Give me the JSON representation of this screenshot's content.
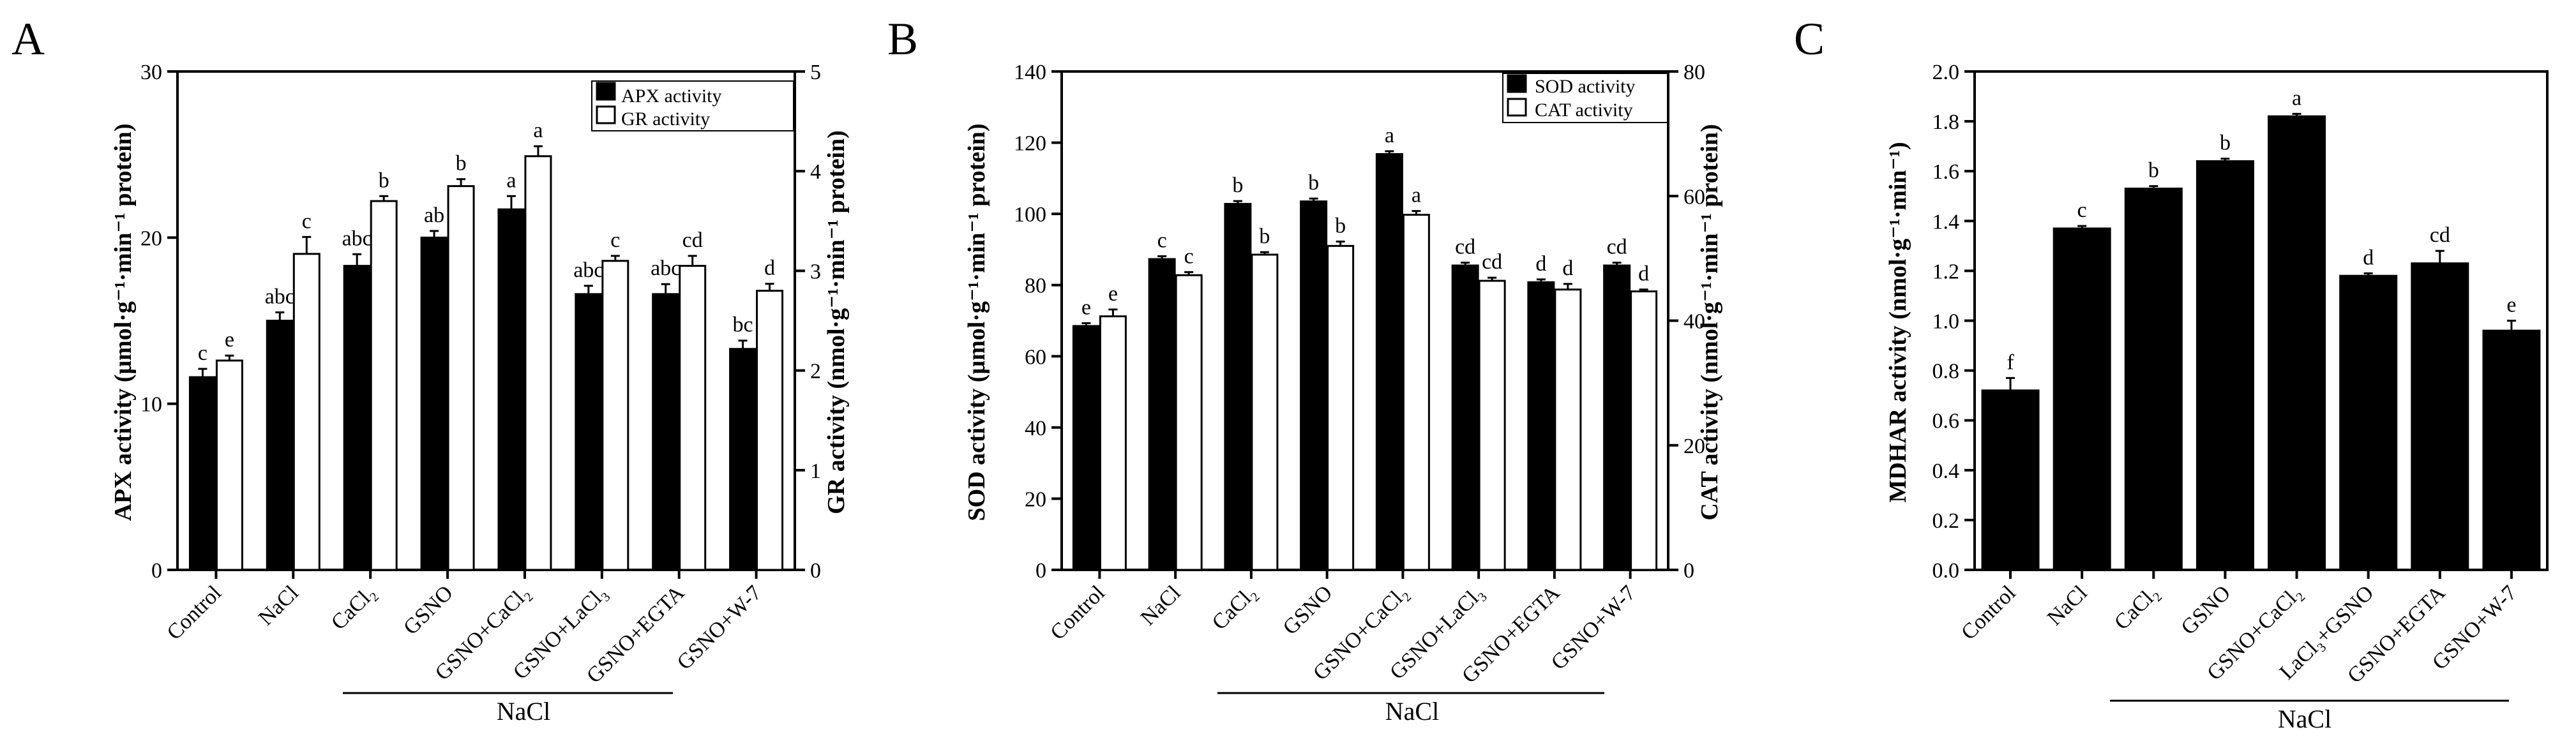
{
  "panels": [
    {
      "panel_label": "A",
      "left_axis_label": "APX activity (μmol·g⁻¹·min⁻¹ protein)",
      "right_axis_label": "GR activity (nmol·g⁻¹·min⁻¹ protein)",
      "group_label": "NaCl",
      "legend": [
        "APX activity",
        "GR activity"
      ]
    },
    {
      "panel_label": "B",
      "left_axis_label": "SOD activity (μmol·g⁻¹·min⁻¹ protein)",
      "right_axis_label": "CAT activity (nmol·g⁻¹·min⁻¹ protein)",
      "group_label": "NaCl",
      "legend": [
        "SOD activity",
        "CAT activity"
      ]
    },
    {
      "panel_label": "C",
      "left_axis_label": "MDHAR activity (nmol·g⁻¹·min⁻¹)",
      "group_label": "NaCl"
    }
  ],
  "chart_data": [
    {
      "type": "bar",
      "categories": [
        "Control",
        "NaCl",
        "CaCl₂",
        "GSNO",
        "GSNO+CaCl₂",
        "GSNO+LaCl₃",
        "GSNO+EGTA",
        "GSNO+W-7"
      ],
      "y_left": {
        "label": "APX activity (μmol·g⁻¹·min⁻¹ protein)",
        "ylim": [
          0,
          30
        ],
        "ticks": [
          0,
          10,
          20,
          30
        ]
      },
      "y_right": {
        "label": "GR activity (nmol·g⁻¹·min⁻¹ protein)",
        "ylim": [
          0,
          5
        ],
        "ticks": [
          0,
          1,
          2,
          3,
          4,
          5
        ]
      },
      "series": [
        {
          "name": "APX activity",
          "axis": "left",
          "fill": "black",
          "values": [
            11.6,
            15.0,
            18.3,
            20.0,
            21.7,
            16.6,
            16.6,
            13.3
          ],
          "errors": [
            0.5,
            0.5,
            0.7,
            0.4,
            0.8,
            0.5,
            0.6,
            0.5
          ],
          "labels": [
            "c",
            "abc",
            "abc",
            "ab",
            "a",
            "abc",
            "abc",
            "bc"
          ]
        },
        {
          "name": "GR activity",
          "axis": "right",
          "fill": "white",
          "values": [
            2.1,
            3.17,
            3.7,
            3.85,
            4.15,
            3.1,
            3.05,
            2.8
          ],
          "errors": [
            0.05,
            0.17,
            0.05,
            0.07,
            0.1,
            0.05,
            0.1,
            0.07
          ],
          "labels": [
            "e",
            "c",
            "b",
            "b",
            "a",
            "c",
            "cd",
            "d"
          ]
        }
      ],
      "group_label": "NaCl",
      "legend_position": "top-right"
    },
    {
      "type": "bar",
      "categories": [
        "Control",
        "NaCl",
        "CaCl₂",
        "GSNO",
        "GSNO+CaCl₂",
        "GSNO+LaCl₃",
        "GSNO+EGTA",
        "GSNO+W-7"
      ],
      "y_left": {
        "label": "SOD activity (μmol·g⁻¹·min⁻¹ protein)",
        "ylim": [
          0,
          140
        ],
        "ticks": [
          0,
          20,
          40,
          60,
          80,
          100,
          120,
          140
        ]
      },
      "y_right": {
        "label": "CAT activity (nmol·g⁻¹·min⁻¹ protein)",
        "ylim": [
          0,
          80
        ],
        "ticks": [
          0,
          20,
          40,
          60,
          80
        ]
      },
      "series": [
        {
          "name": "SOD activity",
          "axis": "left",
          "fill": "black",
          "values": [
            68.5,
            87.3,
            102.8,
            103.5,
            116.8,
            85.5,
            80.8,
            85.5
          ],
          "errors": [
            0.8,
            0.8,
            0.8,
            0.8,
            0.8,
            0.8,
            0.8,
            0.8
          ],
          "labels": [
            "e",
            "c",
            "b",
            "b",
            "a",
            "cd",
            "d",
            "cd"
          ]
        },
        {
          "name": "CAT activity",
          "axis": "right",
          "fill": "white",
          "values": [
            40.7,
            47.3,
            50.6,
            52.0,
            57.0,
            46.4,
            45.0,
            44.7
          ],
          "errors": [
            1.1,
            0.5,
            0.4,
            0.7,
            0.6,
            0.5,
            0.9,
            0.3
          ],
          "labels": [
            "e",
            "c",
            "b",
            "b",
            "a",
            "cd",
            "d",
            "d"
          ]
        }
      ],
      "group_label": "NaCl",
      "legend_position": "top-right"
    },
    {
      "type": "bar",
      "categories": [
        "Control",
        "NaCl",
        "CaCl₂",
        "GSNO",
        "GSNO+CaCl₂",
        "LaCl₃+GSNO",
        "GSNO+EGTA",
        "GSNO+W-7"
      ],
      "y_left": {
        "label": "MDHAR activity (nmol·g⁻¹·min⁻¹)",
        "ylim": [
          0,
          2.0
        ],
        "ticks": [
          0.0,
          0.2,
          0.4,
          0.6,
          0.8,
          1.0,
          1.2,
          1.4,
          1.6,
          1.8,
          2.0
        ]
      },
      "series": [
        {
          "name": "MDHAR activity",
          "axis": "left",
          "fill": "black",
          "values": [
            0.72,
            1.37,
            1.53,
            1.64,
            1.82,
            1.18,
            1.23,
            0.96
          ],
          "errors": [
            0.05,
            0.01,
            0.01,
            0.01,
            0.01,
            0.01,
            0.05,
            0.04
          ],
          "labels": [
            "f",
            "c",
            "b",
            "b",
            "a",
            "d",
            "cd",
            "e"
          ]
        }
      ],
      "group_label": "NaCl"
    }
  ]
}
